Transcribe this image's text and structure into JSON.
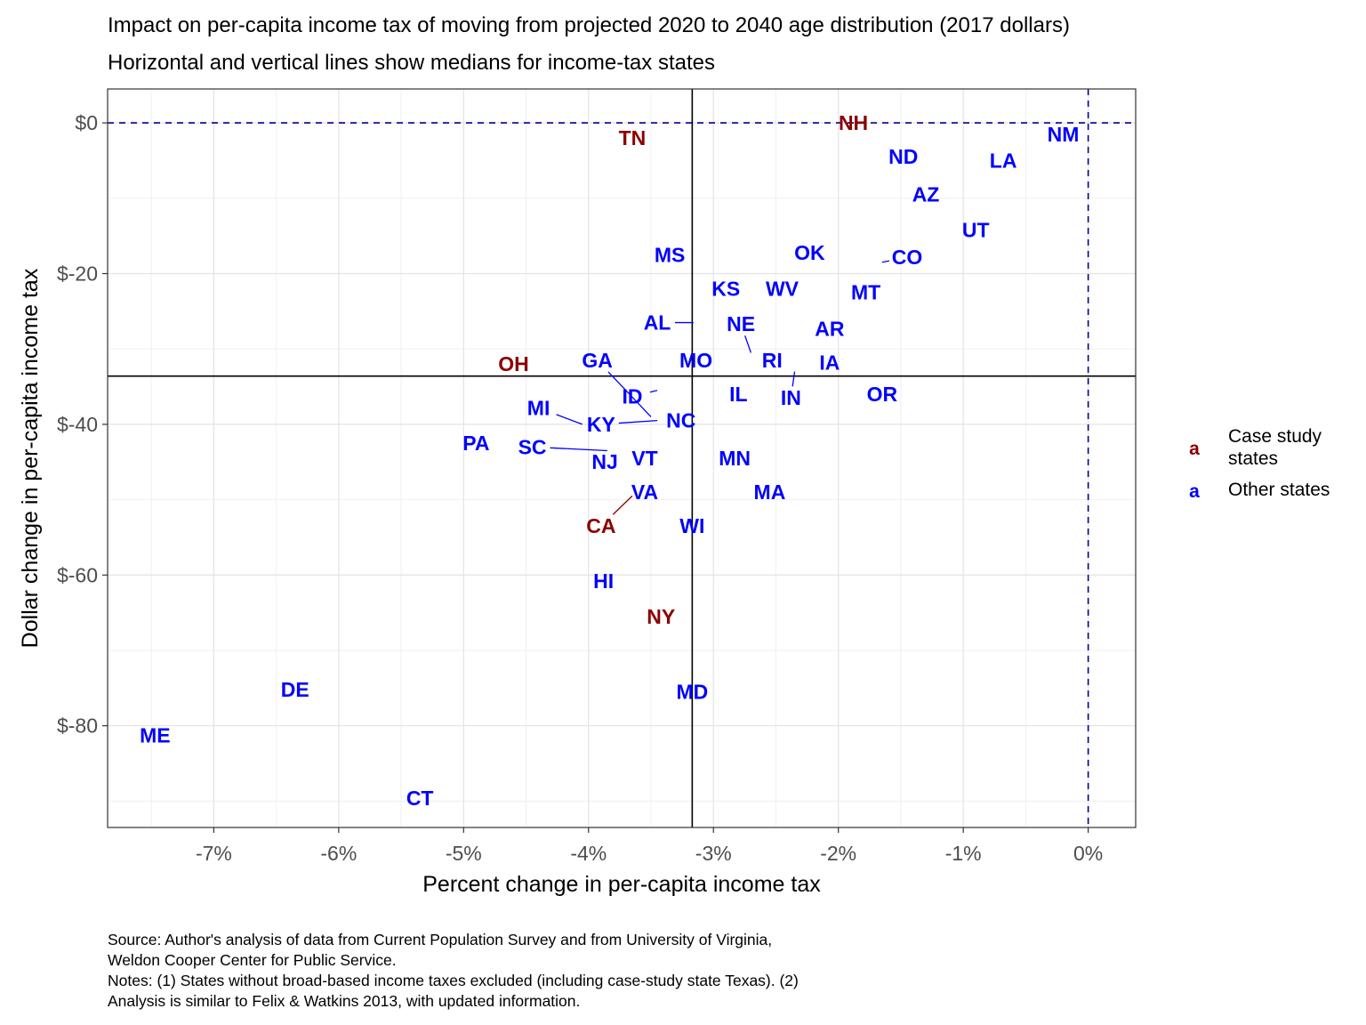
{
  "chart_data": {
    "type": "scatter",
    "title": "Impact on per-capita income tax of moving from projected 2020 to 2040 age distribution (2017 dollars)",
    "subtitle": "Horizontal and vertical lines show medians for income-tax states",
    "xlabel": "Percent change in per-capita income tax",
    "ylabel": "Dollar change in per-capita income tax",
    "xlim": [
      -7.85,
      0.38
    ],
    "ylim": [
      -93.5,
      4.5
    ],
    "x_ticks": [
      -7,
      -6,
      -5,
      -4,
      -3,
      -2,
      -1,
      0
    ],
    "x_tick_labels": [
      "-7%",
      "-6%",
      "-5%",
      "-4%",
      "-3%",
      "-2%",
      "-1%",
      "0%"
    ],
    "y_ticks": [
      0,
      -20,
      -40,
      -60,
      -80
    ],
    "y_tick_labels": [
      "$0",
      "$-20",
      "$-40",
      "$-60",
      "$-80"
    ],
    "grid": true,
    "median_x": -3.17,
    "median_y": -33.6,
    "reference_x": 0,
    "reference_y": 0,
    "legend": {
      "placement": "right",
      "items": [
        {
          "key": "a",
          "label_lines": [
            "Case study",
            "states"
          ],
          "color": "#8b0000"
        },
        {
          "key": "a",
          "label_lines": [
            "Other states"
          ],
          "color": "#0000ff"
        }
      ]
    },
    "colors": {
      "case_study": "#8b0000",
      "other": "#0000ff",
      "reference_line": "#00008b"
    },
    "points": [
      {
        "state": "NH",
        "x": -1.85,
        "y": 0.0,
        "group": "case_study"
      },
      {
        "state": "TN",
        "x": -3.7,
        "y": -2.0,
        "group": "case_study"
      },
      {
        "state": "OH",
        "x": -4.6,
        "y": -31.5,
        "group": "case_study"
      },
      {
        "state": "CA",
        "x": -3.65,
        "y": -49.5,
        "group": "case_study"
      },
      {
        "state": "NY",
        "x": -3.42,
        "y": -65.0,
        "group": "case_study"
      },
      {
        "state": "NM",
        "x": -0.05,
        "y": -1.5,
        "group": "other"
      },
      {
        "state": "ND",
        "x": -1.52,
        "y": -4.5,
        "group": "other"
      },
      {
        "state": "LA",
        "x": -0.74,
        "y": -5.0,
        "group": "other"
      },
      {
        "state": "AZ",
        "x": -1.3,
        "y": -9.5,
        "group": "other"
      },
      {
        "state": "UT",
        "x": -1.0,
        "y": -14.0,
        "group": "other"
      },
      {
        "state": "MS",
        "x": -3.25,
        "y": -17.5,
        "group": "other"
      },
      {
        "state": "OK",
        "x": -2.23,
        "y": -17.5,
        "group": "other"
      },
      {
        "state": "CO",
        "x": -1.65,
        "y": -18.5,
        "group": "other"
      },
      {
        "state": "KS",
        "x": -2.9,
        "y": -22.5,
        "group": "other"
      },
      {
        "state": "WV",
        "x": -2.4,
        "y": -24.0,
        "group": "other"
      },
      {
        "state": "MT",
        "x": -1.85,
        "y": -22.5,
        "group": "other"
      },
      {
        "state": "AL",
        "x": -3.16,
        "y": -26.5,
        "group": "other"
      },
      {
        "state": "NE",
        "x": -2.7,
        "y": -30.5,
        "group": "other"
      },
      {
        "state": "AR",
        "x": -2.05,
        "y": -29.0,
        "group": "other"
      },
      {
        "state": "GA",
        "x": -3.5,
        "y": -39.0,
        "group": "other"
      },
      {
        "state": "MO",
        "x": -3.1,
        "y": -32.8,
        "group": "other"
      },
      {
        "state": "RI",
        "x": -2.5,
        "y": -33.5,
        "group": "other"
      },
      {
        "state": "IA",
        "x": -2.05,
        "y": -30.5,
        "group": "other"
      },
      {
        "state": "ID",
        "x": -3.45,
        "y": -35.5,
        "group": "other"
      },
      {
        "state": "IL",
        "x": -2.8,
        "y": -36.0,
        "group": "other"
      },
      {
        "state": "IN",
        "x": -2.35,
        "y": -33.0,
        "group": "other"
      },
      {
        "state": "OR",
        "x": -1.65,
        "y": -36.0,
        "group": "other"
      },
      {
        "state": "MI",
        "x": -4.05,
        "y": -40.0,
        "group": "other"
      },
      {
        "state": "KY",
        "x": -3.45,
        "y": -39.5,
        "group": "other"
      },
      {
        "state": "NC",
        "x": -3.2,
        "y": -40.0,
        "group": "other"
      },
      {
        "state": "PA",
        "x": -4.9,
        "y": -42.5,
        "group": "other"
      },
      {
        "state": "SC",
        "x": -3.85,
        "y": -43.5,
        "group": "other"
      },
      {
        "state": "NJ",
        "x": -3.85,
        "y": -45.0,
        "group": "other"
      },
      {
        "state": "VT",
        "x": -3.55,
        "y": -46.5,
        "group": "other"
      },
      {
        "state": "MN",
        "x": -2.75,
        "y": -45.0,
        "group": "other"
      },
      {
        "state": "VA",
        "x": -3.55,
        "y": -49.0,
        "group": "other"
      },
      {
        "state": "MA",
        "x": -2.55,
        "y": -50.0,
        "group": "other"
      },
      {
        "state": "WI",
        "x": -3.17,
        "y": -52.0,
        "group": "other"
      },
      {
        "state": "HI",
        "x": -3.88,
        "y": -61.0,
        "group": "other"
      },
      {
        "state": "MD",
        "x": -3.17,
        "y": -76.0,
        "group": "other"
      },
      {
        "state": "DE",
        "x": -6.35,
        "y": -75.5,
        "group": "other"
      },
      {
        "state": "ME",
        "x": -7.47,
        "y": -81.5,
        "group": "other"
      },
      {
        "state": "CT",
        "x": -5.35,
        "y": -89.5,
        "group": "other"
      }
    ],
    "labels": [
      {
        "state": "NH",
        "x": -1.88,
        "y": 0.0
      },
      {
        "state": "TN",
        "x": -3.65,
        "y": -2.0
      },
      {
        "state": "OH",
        "x": -4.6,
        "y": -32.0
      },
      {
        "state": "CA",
        "x": -3.9,
        "y": -53.5
      },
      {
        "state": "NY",
        "x": -3.42,
        "y": -65.5
      },
      {
        "state": "NM",
        "x": -0.2,
        "y": -1.5
      },
      {
        "state": "ND",
        "x": -1.48,
        "y": -4.5
      },
      {
        "state": "LA",
        "x": -0.68,
        "y": -5.0
      },
      {
        "state": "AZ",
        "x": -1.3,
        "y": -9.5
      },
      {
        "state": "UT",
        "x": -0.9,
        "y": -14.2
      },
      {
        "state": "MS",
        "x": -3.35,
        "y": -17.5
      },
      {
        "state": "OK",
        "x": -2.23,
        "y": -17.2
      },
      {
        "state": "CO",
        "x": -1.45,
        "y": -17.8
      },
      {
        "state": "KS",
        "x": -2.9,
        "y": -22.0
      },
      {
        "state": "WV",
        "x": -2.45,
        "y": -22.0
      },
      {
        "state": "MT",
        "x": -1.78,
        "y": -22.5
      },
      {
        "state": "AL",
        "x": -3.45,
        "y": -26.5
      },
      {
        "state": "NE",
        "x": -2.78,
        "y": -26.7
      },
      {
        "state": "AR",
        "x": -2.07,
        "y": -27.3
      },
      {
        "state": "GA",
        "x": -3.93,
        "y": -31.5
      },
      {
        "state": "MO",
        "x": -3.14,
        "y": -31.5
      },
      {
        "state": "RI",
        "x": -2.53,
        "y": -31.5
      },
      {
        "state": "IA",
        "x": -2.07,
        "y": -31.8
      },
      {
        "state": "ID",
        "x": -3.65,
        "y": -36.3
      },
      {
        "state": "IL",
        "x": -2.8,
        "y": -36.0
      },
      {
        "state": "IN",
        "x": -2.38,
        "y": -36.5
      },
      {
        "state": "OR",
        "x": -1.65,
        "y": -36.0
      },
      {
        "state": "MI",
        "x": -4.4,
        "y": -37.8
      },
      {
        "state": "KY",
        "x": -3.9,
        "y": -40.0
      },
      {
        "state": "NC",
        "x": -3.26,
        "y": -39.5
      },
      {
        "state": "PA",
        "x": -4.9,
        "y": -42.5
      },
      {
        "state": "SC",
        "x": -4.45,
        "y": -43.0
      },
      {
        "state": "NJ",
        "x": -3.87,
        "y": -45.0
      },
      {
        "state": "VT",
        "x": -3.55,
        "y": -44.5
      },
      {
        "state": "MN",
        "x": -2.83,
        "y": -44.5
      },
      {
        "state": "VA",
        "x": -3.55,
        "y": -49.0
      },
      {
        "state": "MA",
        "x": -2.55,
        "y": -49.0
      },
      {
        "state": "WI",
        "x": -3.17,
        "y": -53.5
      },
      {
        "state": "HI",
        "x": -3.88,
        "y": -60.8
      },
      {
        "state": "MD",
        "x": -3.17,
        "y": -75.5
      },
      {
        "state": "DE",
        "x": -6.35,
        "y": -75.2
      },
      {
        "state": "ME",
        "x": -7.47,
        "y": -81.3
      },
      {
        "state": "CT",
        "x": -5.35,
        "y": -89.6
      }
    ]
  },
  "caption": [
    "Source: Author's analysis of data from Current Population Survey and from University of Virginia,",
    "Weldon Cooper Center for Public Service.",
    "Notes: (1) States without broad-based income taxes excluded (including case-study state Texas). (2)",
    "Analysis is similar to Felix & Watkins 2013, with updated information."
  ]
}
